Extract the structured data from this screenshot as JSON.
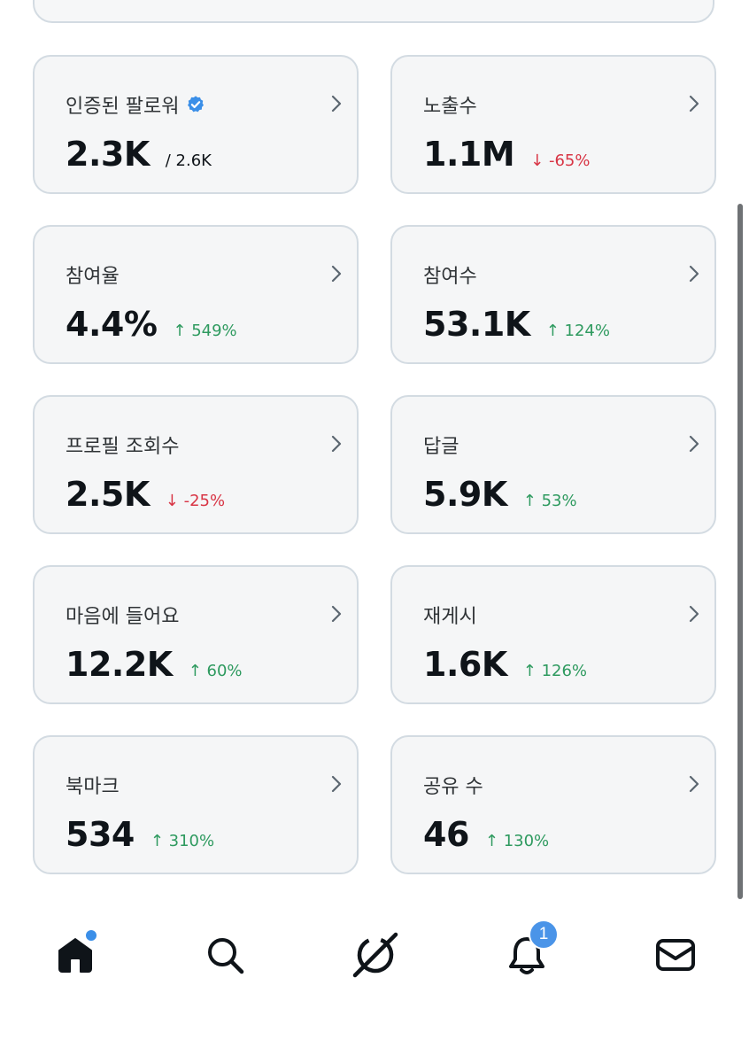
{
  "cards": [
    {
      "label": "인증된 팔로워",
      "value": "2.3K",
      "sub": "/ 2.6K",
      "trend": "neutral",
      "verified": true
    },
    {
      "label": "노출수",
      "value": "1.1M",
      "sub": "↓ -65%",
      "trend": "down"
    },
    {
      "label": "참여율",
      "value": "4.4%",
      "sub": "↑ 549%",
      "trend": "up"
    },
    {
      "label": "참여수",
      "value": "53.1K",
      "sub": "↑ 124%",
      "trend": "up"
    },
    {
      "label": "프로필 조회수",
      "value": "2.5K",
      "sub": "↓ -25%",
      "trend": "down"
    },
    {
      "label": "답글",
      "value": "5.9K",
      "sub": "↑ 53%",
      "trend": "up"
    },
    {
      "label": "마음에 들어요",
      "value": "12.2K",
      "sub": "↑ 60%",
      "trend": "up"
    },
    {
      "label": "재게시",
      "value": "1.6K",
      "sub": "↑ 126%",
      "trend": "up"
    },
    {
      "label": "북마크",
      "value": "534",
      "sub": "↑ 310%",
      "trend": "up"
    },
    {
      "label": "공유 수",
      "value": "46",
      "sub": "↑ 130%",
      "trend": "up"
    }
  ],
  "nav": {
    "items": [
      "home-icon",
      "search-icon",
      "grok-icon",
      "notifications-icon",
      "messages-icon"
    ],
    "notification_count": "1"
  },
  "colors": {
    "up": "#2e9a5f",
    "down": "#d83545",
    "accent": "#3b8fe8"
  }
}
